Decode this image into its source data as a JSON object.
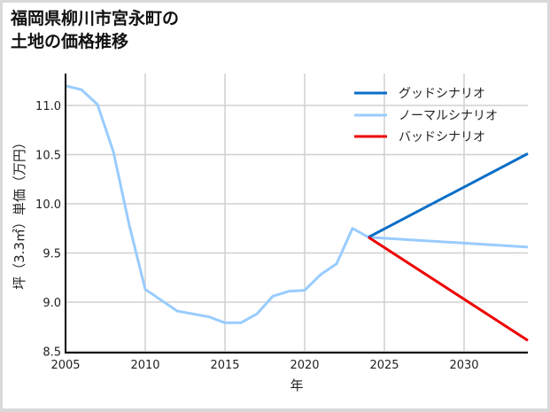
{
  "title": {
    "line1": "福岡県柳川市宮永町の",
    "line2": "土地の価格推移"
  },
  "colors": {
    "good": "#0a6fc7",
    "normal": "#99ccff",
    "bad": "#ee0000",
    "grid": "#d0d0d0",
    "axis": "#000000"
  },
  "legend": {
    "good": "グッドシナリオ",
    "normal": "ノーマルシナリオ",
    "bad": "バッドシナリオ"
  },
  "chart_data": {
    "type": "line",
    "title": "福岡県柳川市宮永町の土地の価格推移",
    "xlabel": "年",
    "ylabel": "坪（3.3㎡）単価（万円）",
    "xlim": [
      2005,
      2034
    ],
    "ylim": [
      8.5,
      11.3
    ],
    "x_ticks": [
      "2005",
      "2010",
      "2015",
      "2020",
      "2025",
      "2030"
    ],
    "y_ticks": [
      "8.5",
      "9.0",
      "9.5",
      "10.0",
      "10.5",
      "11.0"
    ],
    "grid": true,
    "legend_position": "upper right",
    "series": [
      {
        "name": "ノーマルシナリオ",
        "color": "#99ccff",
        "x": [
          2005,
          2006,
          2007,
          2008,
          2009,
          2010,
          2011,
          2012,
          2013,
          2014,
          2015,
          2016,
          2017,
          2018,
          2019,
          2020,
          2021,
          2022,
          2023,
          2024,
          2034
        ],
        "values": [
          11.2,
          11.16,
          11.01,
          10.53,
          9.78,
          9.13,
          9.02,
          8.91,
          8.88,
          8.85,
          8.79,
          8.79,
          8.88,
          9.06,
          9.11,
          9.12,
          9.28,
          9.39,
          9.75,
          9.66,
          9.56
        ]
      },
      {
        "name": "グッドシナリオ",
        "color": "#0a6fc7",
        "x": [
          2024,
          2034
        ],
        "values": [
          9.66,
          10.51
        ]
      },
      {
        "name": "バッドシナリオ",
        "color": "#ee0000",
        "x": [
          2024,
          2034
        ],
        "values": [
          9.66,
          8.61
        ]
      }
    ]
  }
}
